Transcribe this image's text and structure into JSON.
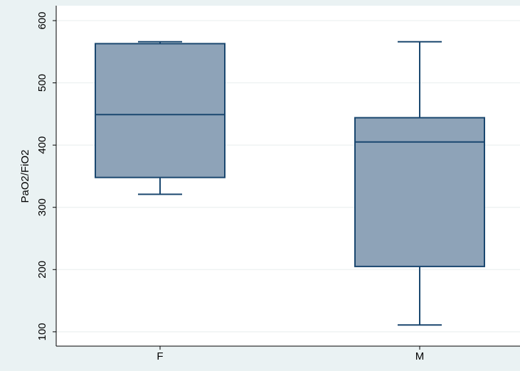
{
  "chart_data": {
    "type": "box",
    "y_label": "PaO2/FiO2",
    "categories": [
      "F",
      "M"
    ],
    "boxes": [
      {
        "min": 321,
        "q1": 348,
        "median": 449,
        "q3": 563,
        "max": 566
      },
      {
        "min": 111,
        "q1": 205,
        "median": 405,
        "q3": 444,
        "max": 566
      }
    ],
    "color": "#8ea3b8",
    "edge_color": "#1a476f",
    "ylim": [
      77,
      624
    ],
    "yticks": [
      100,
      200,
      300,
      400,
      500,
      600
    ],
    "grid": true
  }
}
